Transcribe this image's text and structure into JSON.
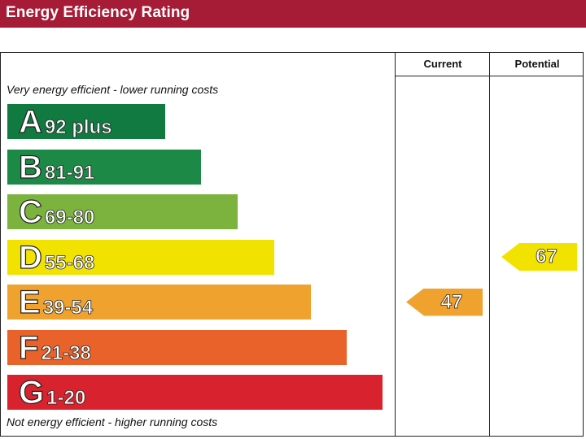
{
  "header": {
    "title": "Energy Efficiency Rating",
    "bg_color": "#a61c36"
  },
  "columns": {
    "current": "Current",
    "potential": "Potential"
  },
  "notes": {
    "top": "Very energy efficient - lower running costs",
    "bottom": "Not energy efficient - higher running costs"
  },
  "chart_data": {
    "type": "bar",
    "title": "Energy Efficiency Rating",
    "categories": [
      "A",
      "B",
      "C",
      "D",
      "E",
      "F",
      "G"
    ],
    "bands": [
      {
        "letter": "A",
        "range": "92 plus",
        "color": "#117a41"
      },
      {
        "letter": "B",
        "range": "81-91",
        "color": "#1c8a46"
      },
      {
        "letter": "C",
        "range": "69-80",
        "color": "#7bb33e"
      },
      {
        "letter": "D",
        "range": "55-68",
        "color": "#f2e200"
      },
      {
        "letter": "E",
        "range": "39-54",
        "color": "#f0a22f"
      },
      {
        "letter": "F",
        "range": "21-38",
        "color": "#e9622a"
      },
      {
        "letter": "G",
        "range": "1-20",
        "color": "#d8222d"
      }
    ],
    "current": {
      "value": "47",
      "band": "E",
      "color": "#f0a22f"
    },
    "potential": {
      "value": "67",
      "band": "D",
      "color": "#f2e200"
    }
  }
}
